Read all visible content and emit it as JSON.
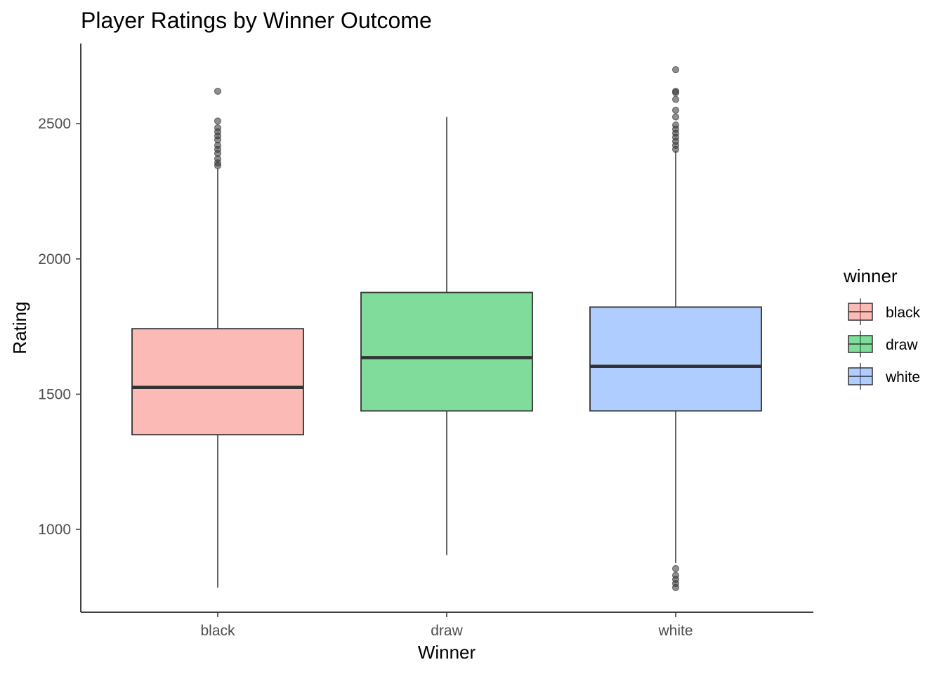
{
  "chart_data": {
    "type": "boxplot",
    "title": "Player Ratings by Winner Outcome",
    "xlabel": "Winner",
    "ylabel": "Rating",
    "categories": [
      "black",
      "draw",
      "white"
    ],
    "ylim": [
      700,
      2800
    ],
    "yticks": [
      1000,
      1500,
      2000,
      2500
    ],
    "y_tick_labels": [
      "1000",
      "1500",
      "2000",
      "2500"
    ],
    "grid": false,
    "legend": {
      "title": "winner",
      "placement": "right",
      "entries": [
        "black",
        "draw",
        "white"
      ]
    },
    "colors": {
      "black": "#F8766D",
      "draw": "#00BA38",
      "white": "#619CFF",
      "outline": "#333333",
      "axis": "#000000"
    },
    "boxes": [
      {
        "name": "black",
        "whisker_low": 785,
        "q1": 1350,
        "median": 1525,
        "q3": 1742,
        "whisker_high": 2335,
        "outliers": [
          2345,
          2355,
          2370,
          2390,
          2405,
          2420,
          2440,
          2455,
          2470,
          2485,
          2510,
          2620
        ]
      },
      {
        "name": "draw",
        "whisker_low": 905,
        "q1": 1438,
        "median": 1635,
        "q3": 1876,
        "whisker_high": 2525,
        "outliers": []
      },
      {
        "name": "white",
        "whisker_low": 875,
        "q1": 1438,
        "median": 1603,
        "q3": 1822,
        "whisker_high": 2400,
        "outliers": [
          785,
          800,
          815,
          830,
          855,
          2405,
          2420,
          2435,
          2450,
          2465,
          2480,
          2495,
          2525,
          2550,
          2590,
          2615,
          2620,
          2700
        ]
      }
    ]
  }
}
